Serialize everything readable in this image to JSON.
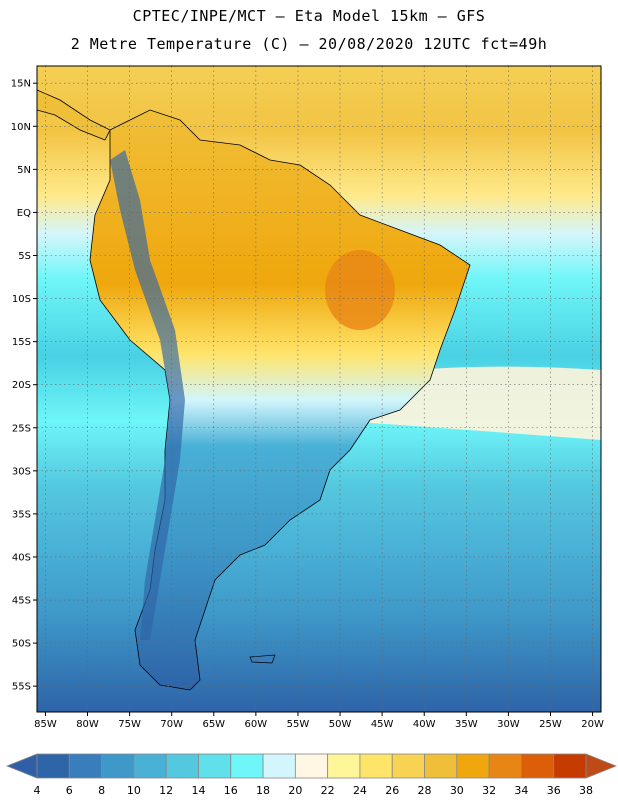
{
  "header": {
    "line1": "CPTEC/INPE/MCT –  Eta Model 15km – GFS",
    "line2": "2 Metre Temperature (C) – 20/08/2020 12UTC fct=49h"
  },
  "map": {
    "lon_range": [
      -86,
      -19
    ],
    "lat_range": [
      17,
      -58
    ],
    "lat_ticks": [
      "15N",
      "10N",
      "5N",
      "EQ",
      "5S",
      "10S",
      "15S",
      "20S",
      "25S",
      "30S",
      "35S",
      "40S",
      "45S",
      "50S",
      "55S"
    ],
    "lat_tick_values": [
      15,
      10,
      5,
      0,
      -5,
      -10,
      -15,
      -20,
      -25,
      -30,
      -35,
      -40,
      -45,
      -50,
      -55
    ],
    "lon_ticks": [
      "85W",
      "80W",
      "75W",
      "70W",
      "65W",
      "60W",
      "55W",
      "50W",
      "45W",
      "40W",
      "35W",
      "30W",
      "25W",
      "20W"
    ],
    "lon_tick_values": [
      -85,
      -80,
      -75,
      -70,
      -65,
      -60,
      -55,
      -50,
      -45,
      -40,
      -35,
      -30,
      -25,
      -20
    ],
    "gridlines": true
  },
  "colorbar": {
    "labels": [
      "4",
      "6",
      "8",
      "10",
      "12",
      "14",
      "16",
      "18",
      "20",
      "22",
      "24",
      "26",
      "28",
      "30",
      "32",
      "34",
      "36",
      "38"
    ],
    "colors": [
      "#2e64a8",
      "#3a7dbd",
      "#3e98c8",
      "#49b0d6",
      "#54c8df",
      "#5fe0ea",
      "#6ef6f8",
      "#d2f6fb",
      "#fff6e4",
      "#fff699",
      "#ffe46a",
      "#f8d253",
      "#f0bf39",
      "#efa70d",
      "#e88615",
      "#dc5e09",
      "#c63c00"
    ],
    "left_arrow_color": "#2f5fa7",
    "right_arrow_color": "#c04a16"
  }
}
